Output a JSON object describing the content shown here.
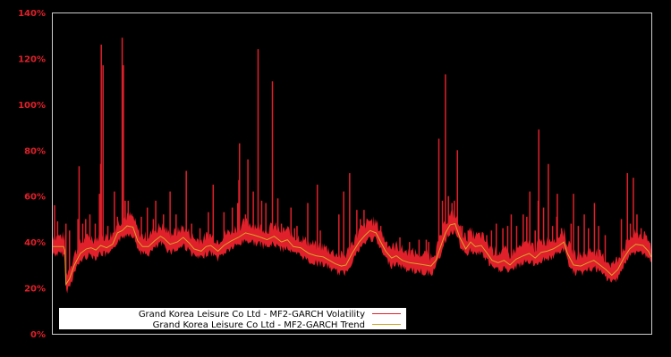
{
  "chart_data": {
    "type": "line",
    "title": "",
    "xlabel": "",
    "ylabel": "",
    "ylim": [
      0,
      140
    ],
    "yticks": [
      0,
      20,
      40,
      60,
      80,
      100,
      120,
      140
    ],
    "ytick_labels": [
      "0%",
      "20%",
      "40%",
      "60%",
      "80%",
      "100%",
      "120%",
      "140%"
    ],
    "grid": false,
    "legend_position": "lower left",
    "background": "#000000",
    "axis_color": "#cccccc",
    "tick_label_color": "#e0202a",
    "series": [
      {
        "name": "Grand Korea Leisure Co Ltd - MF2-GARCH Volatility",
        "color": "#e0202a",
        "band_half_width": 3.5,
        "spikes": [
          [
            0.003,
            56
          ],
          [
            0.008,
            49
          ],
          [
            0.022,
            48
          ],
          [
            0.028,
            45
          ],
          [
            0.042,
            50
          ],
          [
            0.044,
            73
          ],
          [
            0.05,
            48
          ],
          [
            0.055,
            50
          ],
          [
            0.062,
            52
          ],
          [
            0.071,
            48
          ],
          [
            0.078,
            61
          ],
          [
            0.08,
            74
          ],
          [
            0.081,
            126
          ],
          [
            0.084,
            117
          ],
          [
            0.092,
            47
          ],
          [
            0.103,
            62
          ],
          [
            0.108,
            51
          ],
          [
            0.116,
            129
          ],
          [
            0.118,
            117
          ],
          [
            0.121,
            58
          ],
          [
            0.126,
            58
          ],
          [
            0.135,
            46
          ],
          [
            0.148,
            51
          ],
          [
            0.158,
            55
          ],
          [
            0.168,
            50
          ],
          [
            0.172,
            58
          ],
          [
            0.185,
            52
          ],
          [
            0.196,
            62
          ],
          [
            0.206,
            52
          ],
          [
            0.223,
            71
          ],
          [
            0.232,
            48
          ],
          [
            0.246,
            46
          ],
          [
            0.26,
            53
          ],
          [
            0.268,
            65
          ],
          [
            0.286,
            53
          ],
          [
            0.3,
            55
          ],
          [
            0.309,
            57
          ],
          [
            0.311,
            67
          ],
          [
            0.312,
            83
          ],
          [
            0.322,
            52
          ],
          [
            0.326,
            76
          ],
          [
            0.335,
            62
          ],
          [
            0.343,
            124
          ],
          [
            0.349,
            58
          ],
          [
            0.356,
            57
          ],
          [
            0.367,
            110
          ],
          [
            0.376,
            59
          ],
          [
            0.382,
            48
          ],
          [
            0.398,
            55
          ],
          [
            0.404,
            46
          ],
          [
            0.408,
            47
          ],
          [
            0.426,
            57
          ],
          [
            0.442,
            65
          ],
          [
            0.447,
            45
          ],
          [
            0.478,
            52
          ],
          [
            0.486,
            62
          ],
          [
            0.496,
            70
          ],
          [
            0.508,
            54
          ],
          [
            0.514,
            50
          ],
          [
            0.52,
            54
          ],
          [
            0.548,
            47
          ],
          [
            0.558,
            40
          ],
          [
            0.58,
            42
          ],
          [
            0.596,
            40
          ],
          [
            0.612,
            41
          ],
          [
            0.624,
            41
          ],
          [
            0.628,
            40
          ],
          [
            0.645,
            85
          ],
          [
            0.651,
            58
          ],
          [
            0.656,
            113
          ],
          [
            0.661,
            60
          ],
          [
            0.667,
            57
          ],
          [
            0.671,
            58
          ],
          [
            0.676,
            80
          ],
          [
            0.684,
            47
          ],
          [
            0.694,
            45
          ],
          [
            0.705,
            41
          ],
          [
            0.725,
            43
          ],
          [
            0.733,
            45
          ],
          [
            0.741,
            48
          ],
          [
            0.752,
            46
          ],
          [
            0.76,
            47
          ],
          [
            0.766,
            52
          ],
          [
            0.775,
            47
          ],
          [
            0.786,
            52
          ],
          [
            0.792,
            51
          ],
          [
            0.797,
            62
          ],
          [
            0.806,
            45
          ],
          [
            0.811,
            58
          ],
          [
            0.812,
            89
          ],
          [
            0.82,
            55
          ],
          [
            0.828,
            74
          ],
          [
            0.835,
            47
          ],
          [
            0.842,
            51
          ],
          [
            0.843,
            61
          ],
          [
            0.85,
            46
          ],
          [
            0.866,
            48
          ],
          [
            0.87,
            61
          ],
          [
            0.878,
            47
          ],
          [
            0.888,
            52
          ],
          [
            0.895,
            46
          ],
          [
            0.905,
            57
          ],
          [
            0.912,
            47
          ],
          [
            0.923,
            43
          ],
          [
            0.934,
            30
          ],
          [
            0.95,
            50
          ],
          [
            0.96,
            70
          ],
          [
            0.965,
            48
          ],
          [
            0.97,
            68
          ],
          [
            0.976,
            52
          ],
          [
            0.983,
            46
          ]
        ]
      },
      {
        "name": "Grand Korea Leisure Co Ltd - MF2-GARCH Trend",
        "color": "#d4a62a",
        "points": [
          [
            0.0,
            38.0
          ],
          [
            0.018,
            38.0
          ],
          [
            0.02,
            36.5
          ],
          [
            0.022,
            21.5
          ],
          [
            0.028,
            24
          ],
          [
            0.036,
            30
          ],
          [
            0.046,
            35
          ],
          [
            0.056,
            37
          ],
          [
            0.064,
            37.5
          ],
          [
            0.072,
            36.5
          ],
          [
            0.08,
            38.5
          ],
          [
            0.09,
            37.5
          ],
          [
            0.1,
            39
          ],
          [
            0.108,
            44
          ],
          [
            0.116,
            45
          ],
          [
            0.124,
            47
          ],
          [
            0.134,
            46.5
          ],
          [
            0.142,
            40.5
          ],
          [
            0.15,
            38
          ],
          [
            0.16,
            38
          ],
          [
            0.17,
            40.5
          ],
          [
            0.18,
            42.5
          ],
          [
            0.186,
            41.5
          ],
          [
            0.196,
            39
          ],
          [
            0.208,
            40
          ],
          [
            0.218,
            42
          ],
          [
            0.228,
            39.5
          ],
          [
            0.236,
            37
          ],
          [
            0.248,
            36
          ],
          [
            0.256,
            38
          ],
          [
            0.264,
            38.5
          ],
          [
            0.276,
            36
          ],
          [
            0.286,
            38.5
          ],
          [
            0.298,
            40.5
          ],
          [
            0.31,
            42
          ],
          [
            0.322,
            44
          ],
          [
            0.336,
            43
          ],
          [
            0.348,
            42
          ],
          [
            0.358,
            41
          ],
          [
            0.37,
            42.5
          ],
          [
            0.382,
            40
          ],
          [
            0.392,
            41
          ],
          [
            0.402,
            38
          ],
          [
            0.414,
            37.5
          ],
          [
            0.428,
            35
          ],
          [
            0.44,
            34
          ],
          [
            0.452,
            33.5
          ],
          [
            0.462,
            32
          ],
          [
            0.472,
            30.5
          ],
          [
            0.482,
            29.5
          ],
          [
            0.49,
            30
          ],
          [
            0.5,
            35
          ],
          [
            0.512,
            40
          ],
          [
            0.522,
            43
          ],
          [
            0.53,
            45
          ],
          [
            0.54,
            44
          ],
          [
            0.548,
            40
          ],
          [
            0.556,
            36
          ],
          [
            0.566,
            33
          ],
          [
            0.574,
            34
          ],
          [
            0.584,
            32
          ],
          [
            0.596,
            31
          ],
          [
            0.61,
            30.5
          ],
          [
            0.622,
            30
          ],
          [
            0.632,
            29.5
          ],
          [
            0.64,
            32
          ],
          [
            0.648,
            38
          ],
          [
            0.656,
            44
          ],
          [
            0.664,
            47.5
          ],
          [
            0.672,
            48
          ],
          [
            0.68,
            42
          ],
          [
            0.69,
            37
          ],
          [
            0.698,
            40
          ],
          [
            0.706,
            38
          ],
          [
            0.716,
            38.5
          ],
          [
            0.726,
            35
          ],
          [
            0.734,
            32
          ],
          [
            0.744,
            31
          ],
          [
            0.754,
            32
          ],
          [
            0.764,
            30
          ],
          [
            0.774,
            32.5
          ],
          [
            0.786,
            34
          ],
          [
            0.796,
            35
          ],
          [
            0.806,
            33
          ],
          [
            0.816,
            35.5
          ],
          [
            0.826,
            36
          ],
          [
            0.836,
            37
          ],
          [
            0.846,
            38.5
          ],
          [
            0.854,
            40
          ],
          [
            0.86,
            35
          ],
          [
            0.87,
            30
          ],
          [
            0.882,
            29.5
          ],
          [
            0.894,
            31
          ],
          [
            0.904,
            32
          ],
          [
            0.914,
            30
          ],
          [
            0.924,
            28
          ],
          [
            0.934,
            25.5
          ],
          [
            0.944,
            28
          ],
          [
            0.954,
            33
          ],
          [
            0.964,
            37
          ],
          [
            0.974,
            39
          ],
          [
            0.986,
            38.5
          ],
          [
            0.995,
            36
          ],
          [
            1.0,
            33.5
          ]
        ]
      }
    ]
  },
  "legend": {
    "items": [
      {
        "label": "Grand Korea Leisure Co Ltd - MF2-GARCH Volatility",
        "color": "#e0202a"
      },
      {
        "label": "Grand Korea Leisure Co Ltd - MF2-GARCH Trend",
        "color": "#d4a62a"
      }
    ]
  }
}
